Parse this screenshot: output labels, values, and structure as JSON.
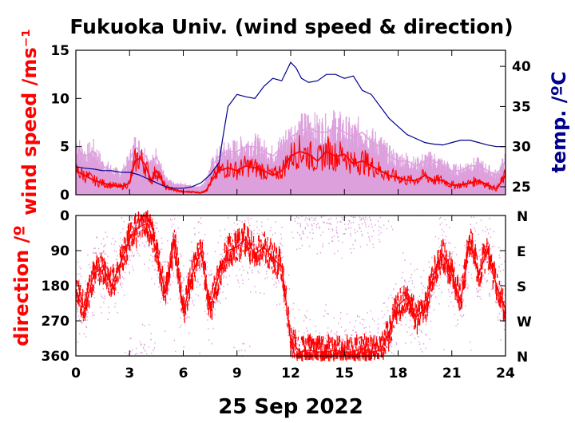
{
  "chart_data": [
    {
      "type": "line",
      "title": "Fukuoka Univ. (wind speed & direction)",
      "ylabel": "wind speed /ms⁻¹",
      "ylabel2": "temp. /ºC",
      "x_ticks": [
        "0",
        "3",
        "6",
        "9",
        "12",
        "15",
        "18",
        "21",
        "24"
      ],
      "xlim": [
        0,
        24
      ],
      "ylim": [
        0,
        15
      ],
      "y_ticks": [
        "0",
        "5",
        "10",
        "15"
      ],
      "y2lim": [
        24,
        42
      ],
      "y2_ticks": [
        "25",
        "30",
        "35",
        "40"
      ],
      "colors": {
        "wind": "#ff0000",
        "gust": "#dda0dd",
        "temp": "#00008b"
      },
      "series": [
        {
          "name": "",
          "axis": "wind",
          "x": [
            0,
            0.5,
            1,
            1.5,
            2,
            2.5,
            3,
            3.3,
            3.6,
            3.9,
            4.2,
            4.5,
            5,
            5.5,
            6,
            6.5,
            7,
            7.3,
            7.6,
            8,
            8.5,
            9,
            9.5,
            10,
            10.5,
            11,
            11.5,
            12,
            12.5,
            13,
            13.5,
            14,
            14.5,
            15,
            15.5,
            16,
            16.5,
            17,
            17.5,
            18,
            18.5,
            19,
            19.5,
            20,
            20.5,
            21,
            21.5,
            22,
            22.5,
            23,
            23.5,
            24
          ],
          "values": [
            2.5,
            2,
            1.5,
            1.2,
            1,
            0.8,
            1.2,
            3.5,
            3.8,
            3,
            1.5,
            2.5,
            0.8,
            0.5,
            0.3,
            0.3,
            0.2,
            0.5,
            1.5,
            2.5,
            2.8,
            2.5,
            3,
            2.8,
            2.5,
            2,
            2.5,
            4,
            4.5,
            4.2,
            3.5,
            4.5,
            4,
            4.2,
            3.2,
            3.5,
            3,
            2.5,
            2,
            1.8,
            1.5,
            1.5,
            2,
            1.5,
            1.5,
            1,
            1,
            1.2,
            1.5,
            1,
            0.6,
            2
          ]
        },
        {
          "name": "",
          "axis": "gust",
          "x": [
            0,
            0.5,
            1,
            1.5,
            2,
            2.5,
            3,
            3.3,
            3.6,
            3.9,
            4.2,
            4.5,
            5,
            5.5,
            6,
            6.5,
            7,
            7.3,
            7.6,
            8,
            8.5,
            9,
            9.5,
            10,
            10.5,
            11,
            11.5,
            12,
            12.5,
            13,
            13.5,
            14,
            14.5,
            15,
            15.5,
            16,
            16.5,
            17,
            17.5,
            18,
            18.5,
            19,
            19.5,
            20,
            20.5,
            21,
            21.5,
            22,
            22.5,
            23,
            23.5,
            24
          ],
          "values": [
            5,
            4,
            4.5,
            3,
            2.5,
            2,
            3.5,
            5,
            4.5,
            4,
            3,
            4,
            1.5,
            1,
            1,
            0.8,
            0.8,
            1.5,
            3,
            4,
            4.5,
            4.5,
            5,
            5,
            4.5,
            4,
            5,
            6,
            6.5,
            7,
            6.5,
            6.5,
            7,
            6.5,
            6,
            6.5,
            5.5,
            5,
            4,
            3.5,
            3.5,
            3,
            3.5,
            3.5,
            3,
            2.5,
            2.5,
            3,
            3,
            2.5,
            2,
            3.5
          ]
        },
        {
          "name": "",
          "axis": "temp",
          "x": [
            0,
            0.5,
            1,
            1.5,
            2,
            2.5,
            3,
            3.5,
            4,
            4.5,
            5,
            5.5,
            6,
            6.5,
            7,
            7.5,
            8,
            8.2,
            8.5,
            9,
            9.5,
            10,
            10.5,
            11,
            11.5,
            12,
            12.3,
            12.6,
            13,
            13.5,
            14,
            14.5,
            15,
            15.5,
            16,
            16.5,
            17,
            17.5,
            18,
            18.5,
            19,
            19.5,
            20,
            20.5,
            21,
            21.5,
            22,
            22.5,
            23,
            23.5,
            24
          ],
          "values": [
            27.5,
            27.3,
            27.2,
            27,
            27,
            26.8,
            26.8,
            26.5,
            26,
            25.5,
            25,
            24.8,
            24.8,
            25,
            25.5,
            26.5,
            28,
            31,
            35,
            36.5,
            36.2,
            36,
            37.5,
            38.5,
            38.2,
            40.5,
            39.8,
            38.5,
            38,
            38.2,
            39,
            39,
            38.5,
            38.8,
            37,
            36.5,
            35,
            33.5,
            32.5,
            31.5,
            31,
            30.5,
            30.3,
            30.2,
            30.5,
            30.8,
            30.8,
            30.5,
            30.2,
            30,
            30
          ]
        }
      ]
    },
    {
      "type": "scatter",
      "ylabel": "direction /º",
      "x_ticks": [
        "0",
        "3",
        "6",
        "9",
        "12",
        "15",
        "18",
        "21",
        "24"
      ],
      "xlim": [
        0,
        24
      ],
      "ylim": [
        0,
        360
      ],
      "y_ticks": [
        "0",
        "90",
        "180",
        "270",
        "360"
      ],
      "y2_ticks": [
        "N",
        "E",
        "S",
        "W",
        "N"
      ],
      "xlabel": "25 Sep 2022",
      "colors": {
        "direction": "#ff0000",
        "scatter": "#dda0dd"
      },
      "series": [
        {
          "name": "",
          "axis": "direction",
          "x": [
            0,
            0.5,
            1,
            1.5,
            2,
            2.5,
            3,
            3.5,
            4,
            4.5,
            5,
            5.5,
            6,
            6.5,
            7,
            7.5,
            8,
            8.5,
            9,
            9.5,
            10,
            10.5,
            11,
            11.5,
            12,
            12.5,
            13,
            13.5,
            14,
            14.5,
            15,
            15.5,
            16,
            16.5,
            17,
            17.5,
            18,
            18.5,
            19,
            19.5,
            20,
            20.5,
            21,
            21.5,
            22,
            22.5,
            23,
            23.5,
            24
          ],
          "values": [
            200,
            240,
            150,
            130,
            180,
            120,
            60,
            30,
            20,
            90,
            200,
            60,
            250,
            150,
            90,
            240,
            150,
            90,
            80,
            60,
            100,
            80,
            110,
            130,
            320,
            350,
            345,
            350,
            350,
            345,
            350,
            350,
            340,
            350,
            345,
            300,
            230,
            210,
            260,
            240,
            150,
            100,
            150,
            220,
            60,
            150,
            90,
            180,
            240
          ]
        }
      ]
    }
  ]
}
